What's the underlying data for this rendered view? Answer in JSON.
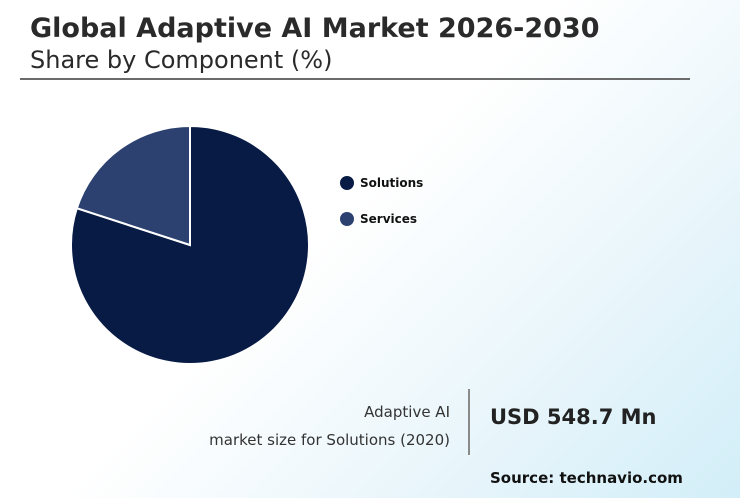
{
  "header": {
    "title": "Global Adaptive AI Market 2026-2030",
    "subtitle": "Share by Component (%)"
  },
  "chart_data": {
    "type": "pie",
    "categories": [
      "Solutions",
      "Services"
    ],
    "values": [
      80,
      20
    ],
    "colors": [
      "#071b45",
      "#2d4170"
    ],
    "legend_position": "right"
  },
  "kpi": {
    "label_line1": "Adaptive AI",
    "label_line2": "market size for Solutions (2020)",
    "value": "USD 548.7 Mn"
  },
  "source": "Source: technavio.com"
}
